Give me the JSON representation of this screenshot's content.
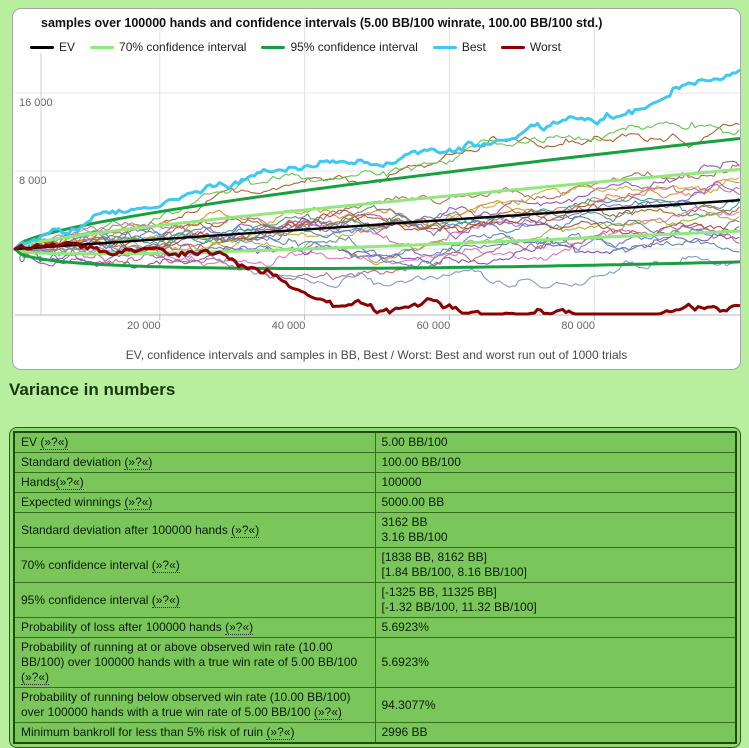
{
  "page": {
    "heading": "Variance in numbers"
  },
  "chart_data": {
    "type": "line",
    "title": "samples over 100000 hands and confidence intervals (5.00 BB/100 winrate, 100.00 BB/100 std.)",
    "caption": "EV, confidence intervals and samples in BB, Best / Worst: Best and worst run out of 1000 trials",
    "hands": 100000,
    "winrate_bb_per_100": 5.0,
    "std_bb_per_100": 100.0,
    "ev_final_bb": 5000,
    "sd_final_bb": 3162,
    "x_range": [
      0,
      100000
    ],
    "y_range": [
      -8200,
      19300
    ],
    "grid": true,
    "legend_position": "top",
    "x_ticks": [
      20000,
      40000,
      60000,
      80000
    ],
    "x_tick_labels": [
      "20 000",
      "40 000",
      "60 000",
      "80 000"
    ],
    "y_ticks": [
      0,
      8000,
      16000
    ],
    "y_tick_labels": [
      "0",
      "8 000",
      "16 000"
    ],
    "legend": [
      {
        "label": "EV",
        "color": "#000000"
      },
      {
        "label": "70% confidence interval",
        "color": "#90e97c"
      },
      {
        "label": "95% confidence interval",
        "color": "#17a13d"
      },
      {
        "label": "Best",
        "color": "#3ec9f2"
      },
      {
        "label": "Worst",
        "color": "#8b0000"
      }
    ],
    "ci70_final_bb": [
      1838,
      8162
    ],
    "ci95_final_bb": [
      -1325,
      11325
    ],
    "best_final_bb": 18300,
    "worst_final_bb": -5800,
    "samples": {
      "count": 20,
      "final_bb": [
        12800,
        12200,
        8700,
        8500,
        7300,
        6800,
        6200,
        5600,
        5200,
        4800,
        4300,
        3800,
        3300,
        2800,
        2300,
        1800,
        1200,
        600,
        -300,
        -1300
      ],
      "colors": [
        "#a86532",
        "#63c653",
        "#b0715a",
        "#9b59b6",
        "#c9b037",
        "#e08e39",
        "#cf6ba9",
        "#8a6fc8",
        "#4a8fc0",
        "#3aa08a",
        "#b5651d",
        "#e377c2",
        "#a2b832",
        "#708090",
        "#6a7fd6",
        "#b04a4a",
        "#7d5ab5",
        "#c46a84",
        "#5b8fa8",
        "#7e9bd0"
      ]
    }
  },
  "variance_table": {
    "help_marker": "(»?«)",
    "rows": [
      {
        "label": "EV ",
        "value_lines": [
          "5.00 BB/100"
        ]
      },
      {
        "label": "Standard deviation ",
        "value_lines": [
          "100.00 BB/100"
        ]
      },
      {
        "label": "Hands",
        "value_lines": [
          "100000"
        ]
      },
      {
        "label": "Expected winnings ",
        "value_lines": [
          "5000.00 BB"
        ]
      },
      {
        "label": "Standard deviation after 100000 hands ",
        "value_lines": [
          "3162 BB",
          "3.16 BB/100"
        ]
      },
      {
        "label": "70% confidence interval ",
        "value_lines": [
          "[1838 BB, 8162 BB]",
          "[1.84 BB/100, 8.16 BB/100]"
        ]
      },
      {
        "label": "95% confidence interval ",
        "value_lines": [
          "[-1325 BB, 11325 BB]",
          "[-1.32 BB/100, 11.32 BB/100]"
        ]
      },
      {
        "label": "Probability of loss after 100000 hands ",
        "value_lines": [
          "5.6923%"
        ]
      },
      {
        "label": "Probability of running at or above observed win rate (10.00 BB/100) over 100000 hands with a true win rate of 5.00 BB/100 ",
        "value_lines": [
          "5.6923%"
        ]
      },
      {
        "label": "Probability of running below observed win rate (10.00 BB/100) over 100000 hands with a true win rate of 5.00 BB/100 ",
        "value_lines": [
          "94.3077%"
        ]
      },
      {
        "label": "Minimum bankroll for less than 5% risk of ruin ",
        "value_lines": [
          "2996 BB"
        ]
      }
    ]
  }
}
